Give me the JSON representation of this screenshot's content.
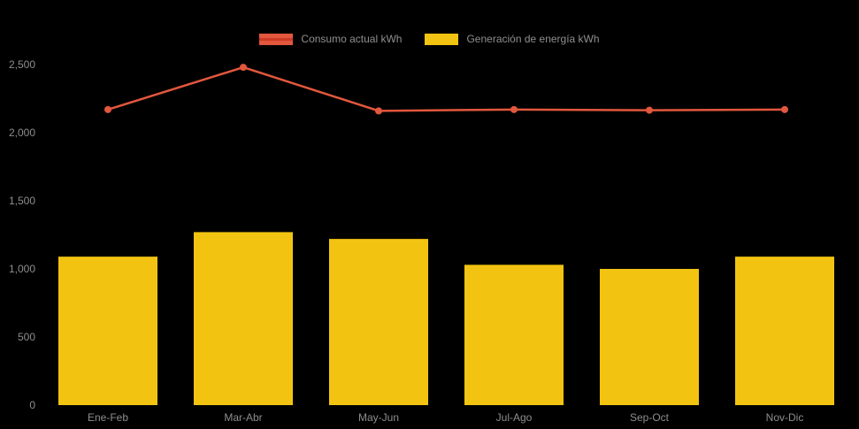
{
  "chart_data": {
    "type": "combo",
    "title": "",
    "categories": [
      "Ene-Feb",
      "Mar-Abr",
      "May-Jun",
      "Jul-Ago",
      "Sep-Oct",
      "Nov-Dic"
    ],
    "series": [
      {
        "name": "Consumo actual kWh",
        "type": "line",
        "color": "#e2573d",
        "stripe_color": "#cf3a24",
        "values": [
          2170,
          2480,
          2160,
          2170,
          2165,
          2170
        ]
      },
      {
        "name": "Generación de energía kWh",
        "type": "bar",
        "color": "#f2c411",
        "values": [
          1090,
          1270,
          1220,
          1030,
          1000,
          1090
        ]
      }
    ],
    "xlabel": "",
    "ylabel": "",
    "ylim": [
      0,
      2500
    ],
    "yticks": [
      0,
      500,
      1000,
      1500,
      2000,
      2500
    ],
    "ytick_labels": [
      "0",
      "500",
      "1,000",
      "1,500",
      "2,000",
      "2,500"
    ],
    "legend_position": "top-center",
    "grid": false,
    "background": "#000000",
    "text_color": "#8e8e8e"
  }
}
